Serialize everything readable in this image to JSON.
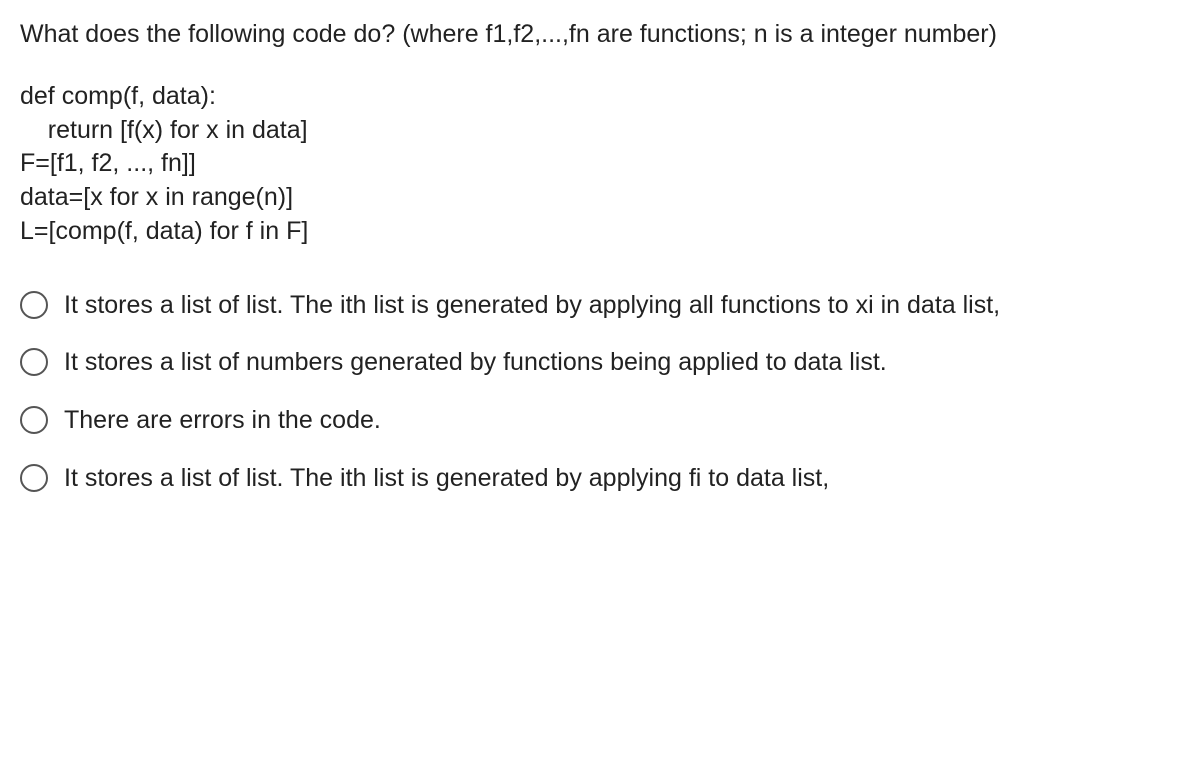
{
  "question": {
    "stem": "What does the following code do? (where f1,f2,...,fn are functions; n is a integer number)",
    "code": [
      "def comp(f, data):",
      "    return [f(x) for x in data]",
      "",
      "F=[f1, f2, ..., fn]]",
      "data=[x for x in range(n)]",
      "L=[comp(f, data) for f in F]"
    ],
    "options": [
      "It stores a list of list. The ith list is generated by applying all functions to xi in data list,",
      "It stores a list of numbers generated by functions being applied to data list.",
      "There are errors in the code.",
      "It stores a list of list. The ith list is generated by applying fi to data list,"
    ]
  }
}
